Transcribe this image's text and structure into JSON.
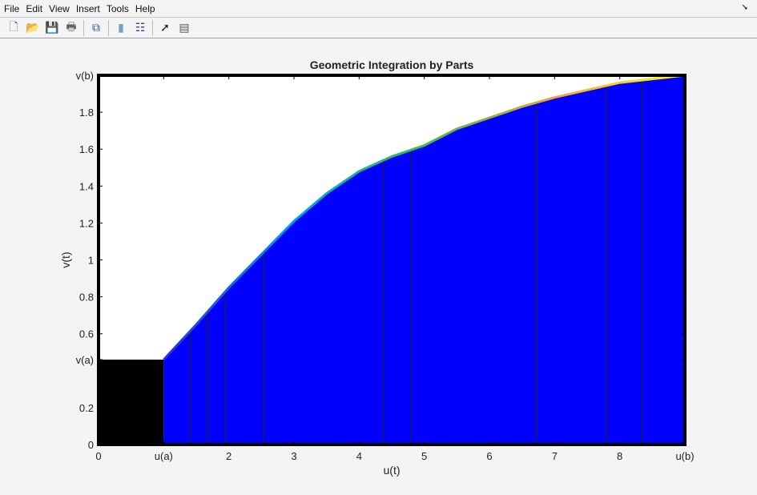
{
  "menu": [
    "File",
    "Edit",
    "View",
    "Insert",
    "Tools",
    "Help"
  ],
  "toolbar": [
    {
      "name": "new-figure",
      "glyph": "🗋",
      "color": "#3060c0"
    },
    {
      "name": "open-file",
      "glyph": "📂",
      "color": "#d0a020"
    },
    {
      "name": "save",
      "glyph": "💾",
      "color": "#3040a0"
    },
    {
      "name": "print",
      "glyph": "🖶",
      "color": "#666"
    },
    {
      "sep": true
    },
    {
      "name": "link-plot",
      "glyph": "⧉",
      "color": "#3050a0"
    },
    {
      "sep": true
    },
    {
      "name": "colorbar",
      "glyph": "▮",
      "color": "#70a0d0"
    },
    {
      "name": "legend",
      "glyph": "☷",
      "color": "#3040a0"
    },
    {
      "sep": true
    },
    {
      "name": "pointer",
      "glyph": "➚",
      "color": "#111"
    },
    {
      "name": "property-editor",
      "glyph": "▤",
      "color": "#555"
    }
  ],
  "chart_data": {
    "type": "area",
    "title": "Geometric Integration by Parts",
    "xlabel": "u(t)",
    "ylabel": "v(t)",
    "xlim": [
      0,
      9
    ],
    "ylim": [
      0,
      2
    ],
    "xticks": [
      {
        "v": 0,
        "label": "0"
      },
      {
        "v": 1,
        "label": "u(a)"
      },
      {
        "v": 2,
        "label": "2"
      },
      {
        "v": 3,
        "label": "3"
      },
      {
        "v": 4,
        "label": "4"
      },
      {
        "v": 5,
        "label": "5"
      },
      {
        "v": 6,
        "label": "6"
      },
      {
        "v": 7,
        "label": "7"
      },
      {
        "v": 8,
        "label": "8"
      },
      {
        "v": 9,
        "label": "u(b)"
      }
    ],
    "yticks": [
      {
        "v": 0,
        "label": "0"
      },
      {
        "v": 0.2,
        "label": "0.2"
      },
      {
        "v": 0.46,
        "label": "v(a)"
      },
      {
        "v": 0.6,
        "label": "0.6"
      },
      {
        "v": 0.8,
        "label": "0.8"
      },
      {
        "v": 1,
        "label": "1"
      },
      {
        "v": 1.2,
        "label": "1.2"
      },
      {
        "v": 1.4,
        "label": "1.4"
      },
      {
        "v": 1.6,
        "label": "1.6"
      },
      {
        "v": 1.8,
        "label": "1.8"
      },
      {
        "v": 2,
        "label": "v(b)"
      }
    ],
    "curve": {
      "x": [
        1,
        1.5,
        2,
        2.5,
        3,
        3.5,
        4,
        4.5,
        5,
        5.5,
        6,
        6.5,
        7,
        7.5,
        8,
        8.5,
        9
      ],
      "y": [
        0.46,
        0.65,
        0.85,
        1.03,
        1.21,
        1.36,
        1.48,
        1.56,
        1.62,
        1.71,
        1.77,
        1.83,
        1.88,
        1.92,
        1.96,
        1.98,
        2.0
      ]
    },
    "rect_region": {
      "x": [
        0,
        1
      ],
      "y": [
        0,
        0.46
      ],
      "color": "#000000"
    },
    "fill_color": "#0000ff",
    "strip_lines_x": [
      1.41,
      1.67,
      1.94,
      2.53,
      4.37,
      4.79,
      6.71,
      7.79,
      8.34
    ],
    "curve_colormap": [
      "#3030d0",
      "#00a0e0",
      "#40c040",
      "#f0a040",
      "#ffff00"
    ]
  }
}
